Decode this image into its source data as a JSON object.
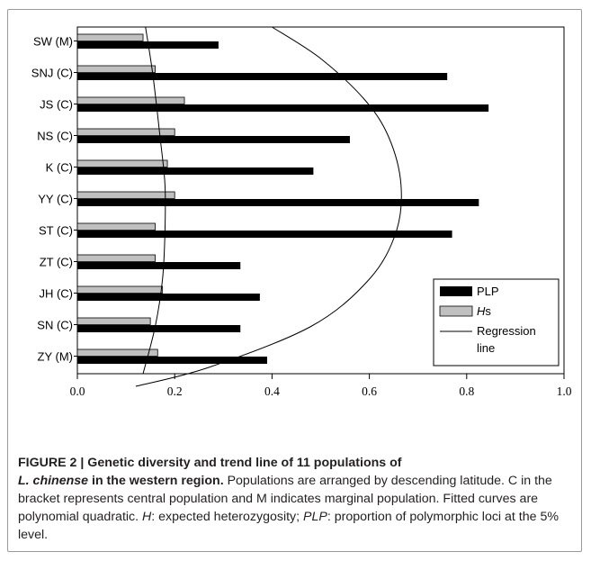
{
  "chart_data": {
    "type": "bar",
    "orientation": "horizontal",
    "categories": [
      "SW (M)",
      "SNJ (C)",
      "JS (C)",
      "NS (C)",
      "K (C)",
      "YY (C)",
      "ST (C)",
      "ZT (C)",
      "JH (C)",
      "SN (C)",
      "ZY (M)"
    ],
    "series": [
      {
        "name": "PLP",
        "color": "#000000",
        "values": [
          0.29,
          0.76,
          0.845,
          0.56,
          0.485,
          0.825,
          0.77,
          0.335,
          0.375,
          0.335,
          0.39
        ]
      },
      {
        "name_prefix": "",
        "name_italic": "H",
        "name_suffix": "s",
        "color": "#c0c0c0",
        "values": [
          0.135,
          0.16,
          0.22,
          0.2,
          0.185,
          0.2,
          0.16,
          0.16,
          0.175,
          0.15,
          0.165
        ]
      }
    ],
    "regression_lines": [
      {
        "name_line1": "Regression",
        "name_line2": "line",
        "fit": "polynomial quadratic",
        "points": [
          [
            0.14,
            0
          ],
          [
            0.155,
            1.5
          ],
          [
            0.17,
            3.5
          ],
          [
            0.18,
            5
          ],
          [
            0.18,
            6.5
          ],
          [
            0.175,
            8
          ],
          [
            0.16,
            9.5
          ],
          [
            0.135,
            11
          ]
        ]
      },
      {
        "fit": "polynomial quadratic",
        "points": [
          [
            0.4,
            0
          ],
          [
            0.5,
            1
          ],
          [
            0.59,
            2.3
          ],
          [
            0.64,
            3.5
          ],
          [
            0.665,
            5
          ],
          [
            0.655,
            6.5
          ],
          [
            0.6,
            8
          ],
          [
            0.48,
            9.5
          ],
          [
            0.27,
            10.8
          ],
          [
            0.12,
            11.4
          ]
        ]
      }
    ],
    "xlim": [
      0,
      1.0
    ],
    "xticks": [
      "0.0",
      "0.2",
      "0.4",
      "0.6",
      "0.8",
      "1.0"
    ],
    "xtick_values": [
      0,
      0.2,
      0.4,
      0.6,
      0.8,
      1.0
    ],
    "legend_placement": "bottom-right",
    "grid": false
  },
  "caption": {
    "figure_label": "FIGURE 2 | ",
    "bold_title_1": "Genetic diversity and trend line of 11 populations of",
    "bold_species": "L. chinense",
    "bold_title_2": " in the western region.",
    "text_1": " Populations are arranged by descending latitude. C in the bracket represents central population and M indicates marginal population. Fitted curves are polynomial quadratic. ",
    "h_italic": "H",
    "text_2": ": expected heterozygosity; ",
    "plp_italic": "PLP",
    "text_3": ": proportion of polymorphic loci at the 5% level."
  }
}
